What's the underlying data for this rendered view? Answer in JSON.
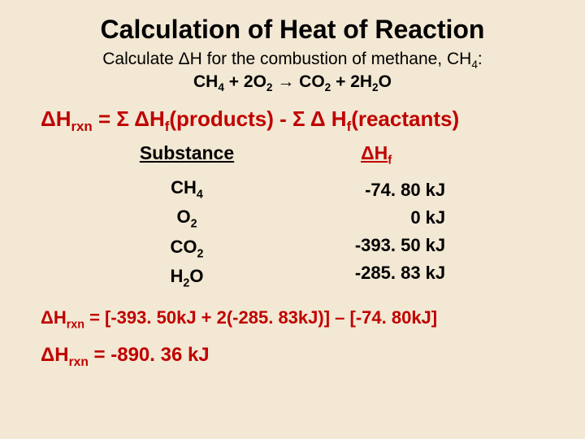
{
  "background_color": "#f2e8d3",
  "accent_color": "#c00000",
  "text_color": "#000000",
  "font_family": "Comic Sans MS",
  "title": "Calculation of Heat of Reaction",
  "title_fontsize": 32,
  "problem": "Calculate ΔH for the combustion of methane, CH₄:",
  "problem_fontsize": 21,
  "equation": "CH₄ + 2O₂ → CO₂ + 2H₂O",
  "formula": "ΔHᵣₓₙ = Σ ΔH_f(products) - Σ Δ H_f(reactants)",
  "formula_fontsize": 26,
  "table": {
    "headers": {
      "substance": "Substance",
      "dhf": "ΔH_f"
    },
    "rows": [
      {
        "substance": "CH₄",
        "value": "-74. 80 kJ"
      },
      {
        "substance": "O₂",
        "value": "0 kJ"
      },
      {
        "substance": "CO₂",
        "value": "-393. 50 kJ"
      },
      {
        "substance": "H₂O",
        "value": "-285. 83 kJ"
      }
    ],
    "cell_fontsize": 22
  },
  "calc": "ΔHᵣₓₙ = [-393. 50kJ + 2(-285. 83kJ)] – [-74. 80kJ]",
  "result": "ΔHᵣₓₙ = -890. 36 kJ",
  "result_fontsize": 24
}
